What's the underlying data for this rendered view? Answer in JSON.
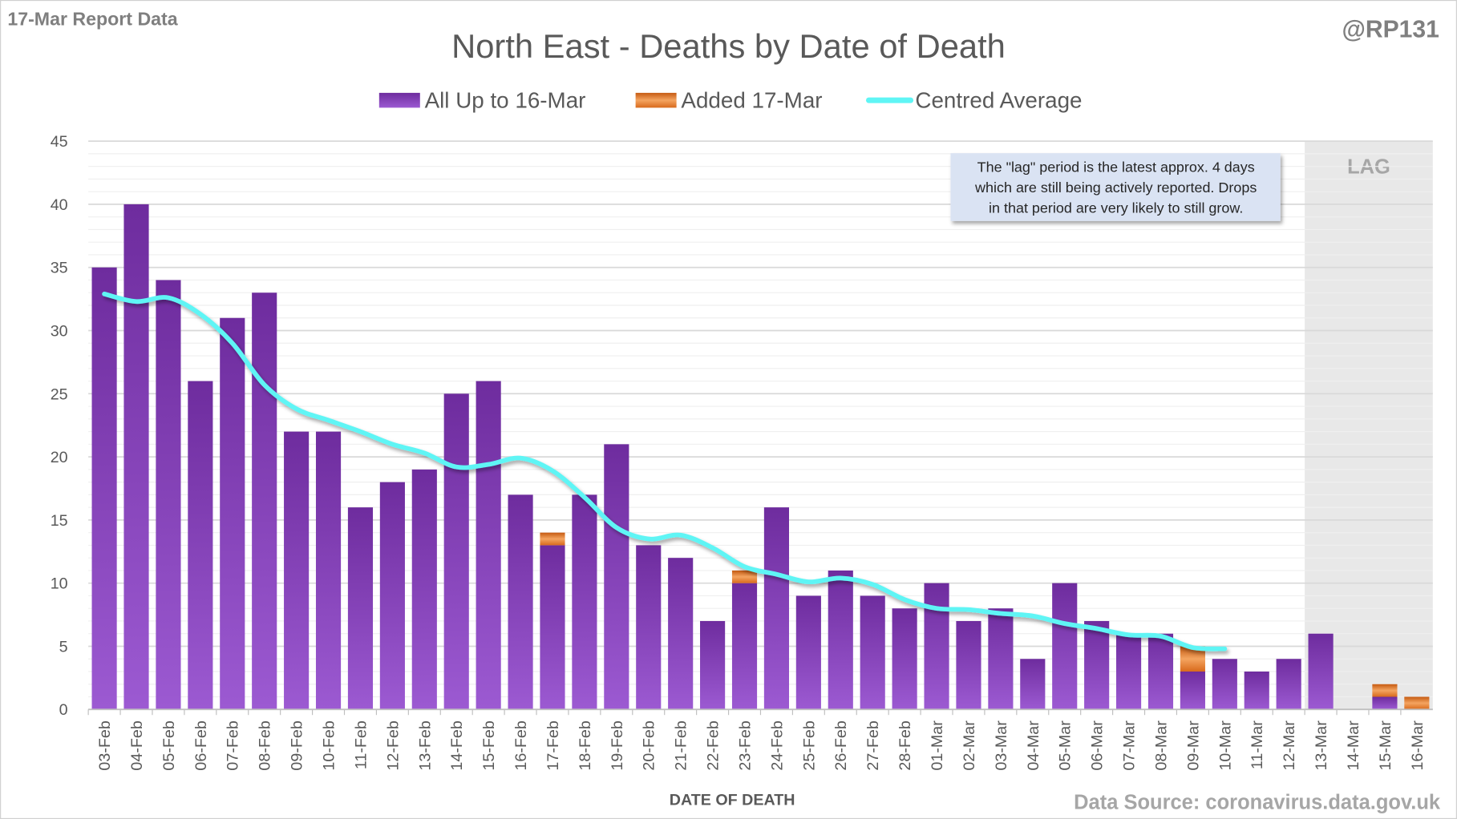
{
  "header": {
    "report_label": "17-Mar Report Data",
    "handle": "@RP131",
    "source": "Data Source: coronavirus.data.gov.uk"
  },
  "annotation": {
    "lines": [
      "The \"lag\" period is the latest approx. 4 days",
      "which are still being actively reported. Drops",
      "in that period are very likely to still grow."
    ],
    "lag_label": "LAG"
  },
  "colors": {
    "purple": "#7030a0",
    "orange": "#e07020",
    "average": "#5ff5f5",
    "lag_bg": "#e8e8e8"
  },
  "chart_data": {
    "type": "bar",
    "stacked": true,
    "title": "North East - Deaths by Date of Death",
    "xlabel": "DATE OF DEATH",
    "ylabel": "",
    "ylim": [
      0,
      45
    ],
    "yticks": [
      0,
      5,
      10,
      15,
      20,
      25,
      30,
      35,
      40,
      45
    ],
    "grid": true,
    "legend_position": "top",
    "lag_start": "13-Mar",
    "categories": [
      "03-Feb",
      "04-Feb",
      "05-Feb",
      "06-Feb",
      "07-Feb",
      "08-Feb",
      "09-Feb",
      "10-Feb",
      "11-Feb",
      "12-Feb",
      "13-Feb",
      "14-Feb",
      "15-Feb",
      "16-Feb",
      "17-Feb",
      "18-Feb",
      "19-Feb",
      "20-Feb",
      "21-Feb",
      "22-Feb",
      "23-Feb",
      "24-Feb",
      "25-Feb",
      "26-Feb",
      "27-Feb",
      "28-Feb",
      "01-Mar",
      "02-Mar",
      "03-Mar",
      "04-Mar",
      "05-Mar",
      "06-Mar",
      "07-Mar",
      "08-Mar",
      "09-Mar",
      "10-Mar",
      "11-Mar",
      "12-Mar",
      "13-Mar",
      "14-Mar",
      "15-Mar",
      "16-Mar"
    ],
    "series": [
      {
        "name": "All Up to 16-Mar",
        "type": "bar",
        "values": [
          35,
          40,
          34,
          26,
          31,
          33,
          22,
          22,
          16,
          18,
          19,
          25,
          26,
          17,
          13,
          17,
          21,
          13,
          12,
          7,
          10,
          16,
          9,
          11,
          9,
          8,
          10,
          7,
          8,
          4,
          10,
          7,
          6,
          6,
          3,
          4,
          3,
          4,
          6,
          0,
          1,
          0
        ]
      },
      {
        "name": "Added 17-Mar",
        "type": "bar",
        "values": [
          0,
          0,
          0,
          0,
          0,
          0,
          0,
          0,
          0,
          0,
          0,
          0,
          0,
          0,
          1,
          0,
          0,
          0,
          0,
          0,
          1,
          0,
          0,
          0,
          0,
          0,
          0,
          0,
          0,
          0,
          0,
          0,
          0,
          0,
          2,
          0,
          0,
          0,
          0,
          0,
          1,
          1
        ]
      },
      {
        "name": "Centred Average",
        "type": "line",
        "values": [
          32.9,
          32.3,
          32.6,
          31.3,
          29.0,
          25.7,
          23.8,
          22.9,
          22.0,
          21.0,
          20.3,
          19.2,
          19.4,
          19.9,
          18.9,
          16.8,
          14.4,
          13.5,
          13.8,
          12.8,
          11.3,
          10.7,
          10.1,
          10.4,
          9.9,
          8.7,
          8.0,
          7.9,
          7.6,
          7.4,
          6.8,
          6.4,
          5.9,
          5.8,
          4.9,
          4.8,
          null,
          null,
          null,
          null,
          null,
          null
        ]
      }
    ]
  }
}
